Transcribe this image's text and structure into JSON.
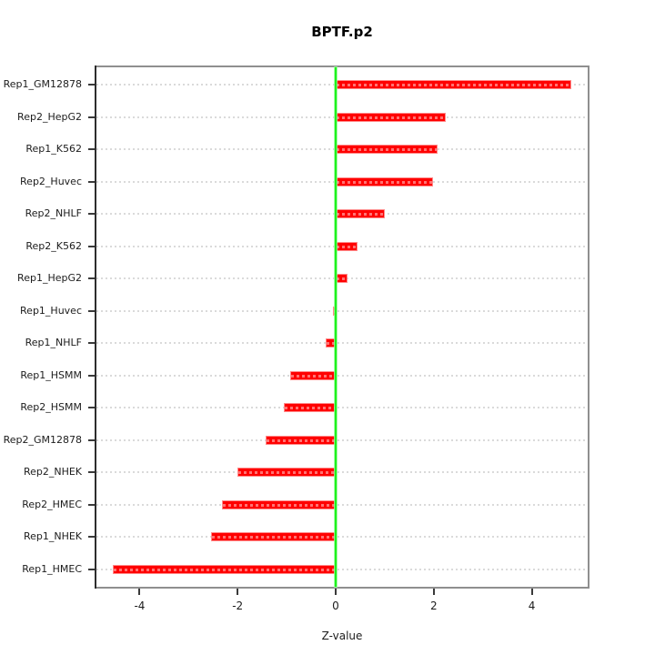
{
  "chart_data": {
    "type": "bar",
    "orientation": "horizontal",
    "title": "BPTF.p2",
    "xlabel": "Z-value",
    "ylabel": "",
    "categories": [
      "Rep1_GM12878",
      "Rep2_HepG2",
      "Rep1_K562",
      "Rep2_Huvec",
      "Rep2_NHLF",
      "Rep2_K562",
      "Rep1_HepG2",
      "Rep1_Huvec",
      "Rep1_NHLF",
      "Rep1_HSMM",
      "Rep2_HSMM",
      "Rep2_GM12878",
      "Rep2_NHEK",
      "Rep2_HMEC",
      "Rep1_NHEK",
      "Rep1_HMEC"
    ],
    "values": [
      4.8,
      2.25,
      2.07,
      1.98,
      1.0,
      0.45,
      0.25,
      -0.05,
      -0.2,
      -0.92,
      -1.05,
      -1.42,
      -2.0,
      -2.32,
      -2.54,
      -4.55
    ],
    "xlim": [
      -4.88,
      5.14
    ],
    "xticks": [
      -4,
      -2,
      0,
      2,
      4
    ],
    "xtick_labels": [
      "-4",
      "-2",
      "0",
      "2",
      "4"
    ],
    "grid": true,
    "legend": null,
    "colors": {
      "bar": "#ff0000",
      "bar_edge": "#ff8a8a",
      "zero_line": "#1df21d",
      "gridline": "#dadada",
      "axis_box": "#8f8f8f",
      "axis_line": "#2d2d2d",
      "text": "#1c1c1c"
    }
  }
}
